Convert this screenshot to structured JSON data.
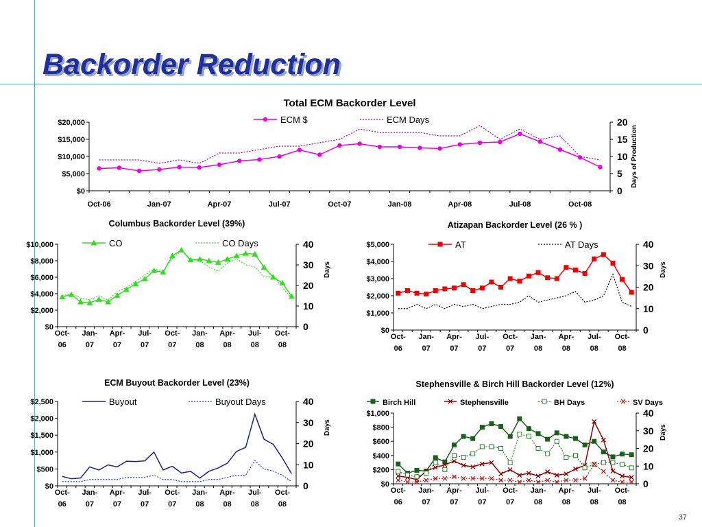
{
  "slide": {
    "title": "Backorder Reduction",
    "page_number": "37"
  },
  "chart_data": [
    {
      "id": "total",
      "type": "line",
      "title": "Total ECM Backorder Level",
      "y2label": "Days of Production",
      "categories": [
        "Oct-06",
        "Nov-06",
        "Dec-06",
        "Jan-07",
        "Feb-07",
        "Mar-07",
        "Apr-07",
        "May-07",
        "Jun-07",
        "Jul-07",
        "Aug-07",
        "Sep-07",
        "Oct-07",
        "Nov-07",
        "Dec-07",
        "Jan-08",
        "Feb-08",
        "Mar-08",
        "Apr-08",
        "May-08",
        "Jun-08",
        "Jul-08",
        "Aug-08",
        "Sep-08",
        "Oct-08",
        "Nov-08"
      ],
      "xtick_labels": [
        "Oct-06",
        "",
        "",
        "Jan-07",
        "",
        "",
        "Apr-07",
        "",
        "",
        "Jul-07",
        "",
        "",
        "Oct-07",
        "",
        "",
        "Jan-08",
        "",
        "",
        "Apr-08",
        "",
        "",
        "Jul-08",
        "",
        "",
        "Oct-08",
        ""
      ],
      "ylim": [
        0,
        20000
      ],
      "yticks": [
        0,
        5000,
        10000,
        15000,
        20000
      ],
      "ytick_labels": [
        "$0",
        "$5,000",
        "$10,000",
        "$15,000",
        "$20,000"
      ],
      "y2lim": [
        0,
        20
      ],
      "y2ticks": [
        0,
        5,
        10,
        15,
        20
      ],
      "y2tick_labels": [
        "0",
        "5",
        "10",
        "15",
        "20"
      ],
      "legend": "top-center",
      "series": [
        {
          "name": "ECM $",
          "axis": "left",
          "color": "#e600e6",
          "style": "solid",
          "marker": "circle",
          "values": [
            6500,
            6700,
            5800,
            6200,
            6900,
            6800,
            7600,
            8700,
            9100,
            10000,
            11900,
            10500,
            13200,
            13700,
            12800,
            12800,
            12500,
            12300,
            13500,
            14000,
            14200,
            16600,
            14300,
            12000,
            9700,
            6900
          ]
        },
        {
          "name": "ECM Days",
          "axis": "right",
          "color": "#aa0080",
          "style": "dotted",
          "marker": "none",
          "values": [
            9,
            9,
            9,
            8,
            9,
            8,
            11,
            11,
            12,
            13,
            13,
            14,
            15,
            18,
            17,
            17,
            17,
            16,
            16,
            19,
            15,
            18,
            15,
            16,
            10,
            9
          ]
        }
      ]
    },
    {
      "id": "columbus",
      "type": "line",
      "title": "Columbus Backorder Level (39%)",
      "y2label": "Days",
      "categories": [
        "Oct-06",
        "Nov-06",
        "Dec-06",
        "Jan-07",
        "Feb-07",
        "Mar-07",
        "Apr-07",
        "May-07",
        "Jun-07",
        "Jul-07",
        "Aug-07",
        "Sep-07",
        "Oct-07",
        "Nov-07",
        "Dec-07",
        "Jan-08",
        "Feb-08",
        "Mar-08",
        "Apr-08",
        "May-08",
        "Jun-08",
        "Jul-08",
        "Aug-08",
        "Sep-08",
        "Oct-08",
        "Nov-08"
      ],
      "xtick_labels": [
        "Oct-\n06",
        "",
        "",
        "Jan-\n07",
        "",
        "",
        "Apr-\n07",
        "",
        "",
        "Jul-\n07",
        "",
        "",
        "Oct-\n07",
        "",
        "",
        "Jan-\n08",
        "",
        "",
        "Apr-\n08",
        "",
        "",
        "Jul-\n08",
        "",
        "",
        "Oct-\n08",
        ""
      ],
      "ylim": [
        0,
        10000
      ],
      "yticks": [
        0,
        2000,
        4000,
        6000,
        8000,
        10000
      ],
      "ytick_labels": [
        "$0",
        "$2,000",
        "$4,000",
        "$6,000",
        "$8,000",
        "$10,000"
      ],
      "y2lim": [
        0,
        40
      ],
      "y2ticks": [
        0,
        10,
        20,
        30,
        40
      ],
      "y2tick_labels": [
        "0",
        "10",
        "20",
        "30",
        "40"
      ],
      "legend": "top-center",
      "series": [
        {
          "name": "CO",
          "axis": "left",
          "color": "#33dd22",
          "style": "solid",
          "marker": "triangle",
          "values": [
            3600,
            3900,
            3000,
            2900,
            3300,
            3000,
            3800,
            4500,
            5200,
            5800,
            6800,
            6600,
            8600,
            9300,
            8100,
            8200,
            8000,
            7800,
            8200,
            8600,
            8900,
            8800,
            7200,
            6000,
            5300,
            3700
          ]
        },
        {
          "name": "CO Days",
          "axis": "right",
          "color": "#33dd22",
          "style": "dotted",
          "marker": "none",
          "values": [
            15,
            16,
            14,
            13,
            15,
            13,
            17,
            19,
            22,
            25,
            28,
            27,
            33,
            37,
            32,
            32,
            29,
            27,
            31,
            33,
            30,
            29,
            24,
            25,
            19,
            14
          ]
        }
      ]
    },
    {
      "id": "atizapan",
      "type": "line",
      "title": "Atizapan Backorder Level (26 % )",
      "y2label": "Days",
      "categories": [
        "Oct-06",
        "Nov-06",
        "Dec-06",
        "Jan-07",
        "Feb-07",
        "Mar-07",
        "Apr-07",
        "May-07",
        "Jun-07",
        "Jul-07",
        "Aug-07",
        "Sep-07",
        "Oct-07",
        "Nov-07",
        "Dec-07",
        "Jan-08",
        "Feb-08",
        "Mar-08",
        "Apr-08",
        "May-08",
        "Jun-08",
        "Jul-08",
        "Aug-08",
        "Sep-08",
        "Oct-08",
        "Nov-08"
      ],
      "xtick_labels": [
        "Oct-\n06",
        "",
        "",
        "Jan-\n07",
        "",
        "",
        "Apr-\n07",
        "",
        "",
        "Jul-\n07",
        "",
        "",
        "Oct-\n07",
        "",
        "",
        "Jan-\n08",
        "",
        "",
        "Apr-\n08",
        "",
        "",
        "Jul-\n08",
        "",
        "",
        "Oct-\n08",
        ""
      ],
      "ylim": [
        0,
        5000
      ],
      "yticks": [
        0,
        1000,
        2000,
        3000,
        4000,
        5000
      ],
      "ytick_labels": [
        "$0",
        "$1,000",
        "$2,000",
        "$3,000",
        "$4,000",
        "$5,000"
      ],
      "y2lim": [
        0,
        40
      ],
      "y2ticks": [
        0,
        10,
        20,
        30,
        40
      ],
      "y2tick_labels": [
        "0",
        "10",
        "20",
        "30",
        "40"
      ],
      "legend": "top-center",
      "series": [
        {
          "name": "AT",
          "axis": "left",
          "color": "#ee0000",
          "style": "solid",
          "marker": "square",
          "values": [
            2150,
            2300,
            2150,
            2100,
            2300,
            2400,
            2450,
            2650,
            2300,
            2450,
            2800,
            2500,
            3000,
            2850,
            3150,
            3350,
            3050,
            3000,
            3650,
            3500,
            3300,
            4150,
            4400,
            3900,
            2950,
            2200
          ]
        },
        {
          "name": "AT Days",
          "axis": "right",
          "color": "#000000",
          "style": "dotted",
          "marker": "none",
          "values": [
            10,
            10,
            12,
            10,
            12,
            10,
            12,
            11,
            12,
            10,
            11,
            12,
            12,
            13,
            16,
            13,
            14,
            15,
            16,
            18,
            13,
            14,
            16,
            26,
            13,
            11
          ]
        }
      ]
    },
    {
      "id": "buyout",
      "type": "line",
      "title": "ECM Buyout Backorder Level (23%)",
      "y2label": "Days",
      "categories": [
        "Oct-06",
        "Nov-06",
        "Dec-06",
        "Jan-07",
        "Feb-07",
        "Mar-07",
        "Apr-07",
        "May-07",
        "Jun-07",
        "Jul-07",
        "Aug-07",
        "Sep-07",
        "Oct-07",
        "Nov-07",
        "Dec-07",
        "Jan-08",
        "Feb-08",
        "Mar-08",
        "Apr-08",
        "May-08",
        "Jun-08",
        "Jul-08",
        "Aug-08",
        "Sep-08",
        "Oct-08",
        "Nov-08"
      ],
      "xtick_labels": [
        "Oct-\n06",
        "",
        "",
        "Jan-\n07",
        "",
        "",
        "Apr-\n07",
        "",
        "",
        "Jul-\n07",
        "",
        "",
        "Oct-\n07",
        "",
        "",
        "Jan-\n08",
        "",
        "",
        "Apr-\n08",
        "",
        "",
        "Jul-\n08",
        "",
        "",
        "Oct-\n08",
        ""
      ],
      "ylim": [
        0,
        2500
      ],
      "yticks": [
        0,
        500,
        1000,
        1500,
        2000,
        2500
      ],
      "ytick_labels": [
        "$0",
        "$500",
        "$1,000",
        "$1,500",
        "$2,000",
        "$2,500"
      ],
      "y2lim": [
        0,
        40
      ],
      "y2ticks": [
        0,
        10,
        20,
        30,
        40
      ],
      "y2tick_labels": [
        "0",
        "10",
        "20",
        "30",
        "40"
      ],
      "legend": "top-center",
      "series": [
        {
          "name": "Buyout",
          "axis": "left",
          "color": "#1a237e",
          "style": "solid",
          "marker": "none",
          "values": [
            280,
            210,
            230,
            560,
            470,
            620,
            560,
            730,
            720,
            740,
            1000,
            470,
            580,
            380,
            430,
            230,
            430,
            530,
            670,
            1020,
            1140,
            2120,
            1380,
            1230,
            820,
            360
          ]
        },
        {
          "name": "Buyout Days",
          "axis": "right",
          "color": "#1a3ed6",
          "style": "dotted",
          "marker": "none",
          "values": [
            2,
            2,
            2,
            3,
            3,
            3,
            3,
            4,
            4,
            4,
            5,
            3,
            3,
            2,
            2,
            2,
            3,
            3,
            4,
            5,
            5,
            12,
            8,
            7,
            5,
            2
          ]
        }
      ]
    },
    {
      "id": "steph",
      "type": "line",
      "title": "Stephensville & Birch Hill Backorder Level (12%)",
      "y2label": "Days",
      "categories": [
        "Oct-06",
        "Nov-06",
        "Dec-06",
        "Jan-07",
        "Feb-07",
        "Mar-07",
        "Apr-07",
        "May-07",
        "Jun-07",
        "Jul-07",
        "Aug-07",
        "Sep-07",
        "Oct-07",
        "Nov-07",
        "Dec-07",
        "Jan-08",
        "Feb-08",
        "Mar-08",
        "Apr-08",
        "May-08",
        "Jun-08",
        "Jul-08",
        "Aug-08",
        "Sep-08",
        "Oct-08",
        "Nov-08"
      ],
      "xtick_labels": [
        "Oct-\n06",
        "",
        "",
        "Jan-\n07",
        "",
        "",
        "Apr-\n07",
        "",
        "",
        "Jul-\n07",
        "",
        "",
        "Oct-\n07",
        "",
        "",
        "Jan-\n08",
        "",
        "",
        "Apr-\n08",
        "",
        "",
        "Jul-\n08",
        "",
        "",
        "Oct-\n08",
        ""
      ],
      "ylim": [
        0,
        1000
      ],
      "yticks": [
        0,
        200,
        400,
        600,
        800,
        1000
      ],
      "ytick_labels": [
        "$0",
        "$200",
        "$400",
        "$600",
        "$800",
        "$1,000"
      ],
      "y2lim": [
        0,
        40
      ],
      "y2ticks": [
        0,
        10,
        20,
        30,
        40
      ],
      "y2tick_labels": [
        "0",
        "10",
        "20",
        "30",
        "40"
      ],
      "legend": "top",
      "series": [
        {
          "name": "Birch Hill",
          "axis": "left",
          "color": "#1b5e20",
          "style": "solid",
          "marker": "square",
          "values": [
            280,
            150,
            190,
            180,
            370,
            310,
            550,
            670,
            640,
            800,
            850,
            810,
            670,
            920,
            780,
            710,
            630,
            720,
            670,
            640,
            550,
            600,
            450,
            380,
            420,
            410
          ]
        },
        {
          "name": "Stephensville",
          "axis": "left",
          "color": "#8b0000",
          "style": "solid",
          "marker": "x",
          "values": [
            110,
            90,
            60,
            180,
            230,
            270,
            320,
            260,
            240,
            280,
            300,
            140,
            200,
            120,
            150,
            110,
            170,
            120,
            140,
            210,
            260,
            880,
            620,
            180,
            110,
            90
          ]
        },
        {
          "name": "BH Days",
          "axis": "right",
          "color": "#2e7d32",
          "style": "dotted",
          "marker": "square-open",
          "values": [
            7,
            5,
            4,
            6,
            12,
            8,
            16,
            15,
            17,
            21,
            21,
            20,
            12,
            28,
            27,
            20,
            17,
            24,
            15,
            16,
            9,
            11,
            12,
            12,
            11,
            9
          ]
        },
        {
          "name": "SV Days",
          "axis": "right",
          "color": "#b71c1c",
          "style": "dotted",
          "marker": "x",
          "values": [
            2,
            1,
            1,
            2,
            3,
            3,
            4,
            3,
            3,
            3,
            3,
            2,
            2,
            1,
            2,
            1,
            2,
            1,
            2,
            2,
            3,
            11,
            7,
            2,
            1,
            1
          ]
        }
      ]
    }
  ]
}
